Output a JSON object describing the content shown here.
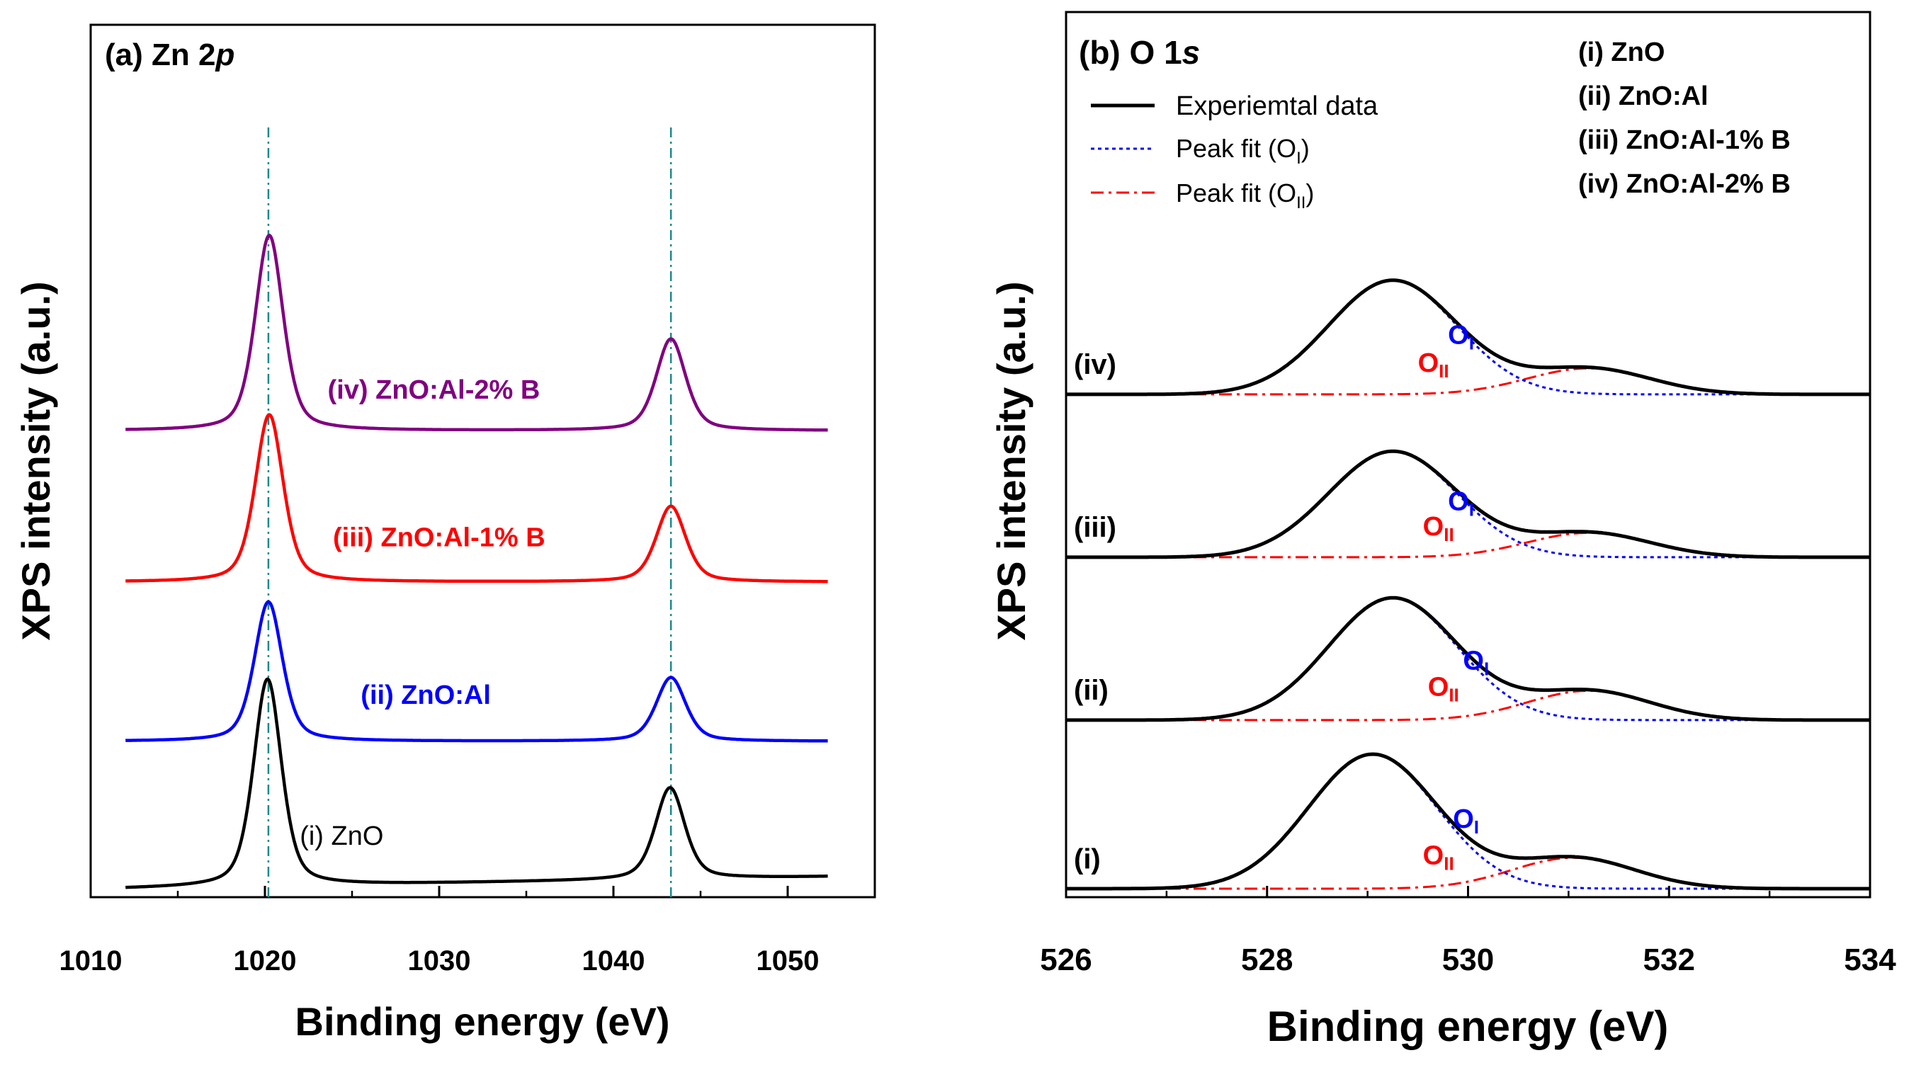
{
  "chart_data": [
    {
      "id": "a",
      "type": "line",
      "title_prefix": "(a) Zn 2",
      "title_italic": "p",
      "xlabel": "Binding energy (eV)",
      "ylabel": "XPS intensity (a.u.)",
      "xlim": [
        1010,
        1055
      ],
      "ylim": [
        0,
        10
      ],
      "x_ticks": [
        1010,
        1020,
        1030,
        1040,
        1050
      ],
      "x_tick_labels": [
        "1010",
        "1020",
        "1030",
        "1040",
        "1050"
      ],
      "y_ticks_shown": false,
      "reference_lines": [
        1020.2,
        1043.3
      ],
      "reference_line_color": "#1a8a8a",
      "x_data_range": [
        1012,
        1052.3
      ],
      "series": [
        {
          "name": "(i) ZnO",
          "label": "(i) ZnO",
          "label_bold": false,
          "color": "#000000",
          "baseline_start": 0.0,
          "baseline_end": 0.15,
          "label_at": [
            1022.0,
            0.55
          ],
          "peaks": [
            {
              "center": 1020.15,
              "height": 2.6,
              "width": 0.95
            },
            {
              "center": 1043.25,
              "height": 1.15,
              "width": 1.0
            }
          ]
        },
        {
          "name": "(ii) ZnO:Al",
          "label": "(ii) ZnO:Al",
          "label_bold": true,
          "color": "#0000ff",
          "baseline_start": 1.85,
          "baseline_end": 1.85,
          "label_at": [
            1025.5,
            2.32
          ],
          "peaks": [
            {
              "center": 1020.2,
              "height": 1.75,
              "width": 0.95
            },
            {
              "center": 1043.3,
              "height": 0.8,
              "width": 1.0
            }
          ]
        },
        {
          "name": "(iii) ZnO:Al-1% B",
          "label": "(iii) ZnO:Al-1% B",
          "label_bold": true,
          "color": "#ff0000",
          "baseline_start": 3.85,
          "baseline_end": 3.85,
          "label_at": [
            1023.9,
            4.3
          ],
          "peaks": [
            {
              "center": 1020.25,
              "height": 2.1,
              "width": 0.95
            },
            {
              "center": 1043.3,
              "height": 0.95,
              "width": 1.0
            }
          ]
        },
        {
          "name": "(iv) ZnO:Al-2% B",
          "label": "(iv) ZnO:Al-2% B",
          "label_bold": true,
          "color": "#800080",
          "baseline_start": 5.75,
          "baseline_end": 5.75,
          "label_at": [
            1023.6,
            6.15
          ],
          "peaks": [
            {
              "center": 1020.25,
              "height": 2.45,
              "width": 0.95
            },
            {
              "center": 1043.3,
              "height": 1.15,
              "width": 1.0
            }
          ]
        }
      ]
    },
    {
      "id": "b",
      "type": "line",
      "title_prefix": "(b) O 1",
      "title_italic": "s",
      "xlabel": "Binding energy (eV)",
      "ylabel": "XPS intensity (a.u.)",
      "xlim": [
        526,
        534
      ],
      "ylim": [
        0,
        10
      ],
      "x_ticks": [
        526,
        528,
        530,
        532,
        534
      ],
      "x_tick_labels": [
        "526",
        "528",
        "530",
        "532",
        "534"
      ],
      "x_minor_ticks": [
        527,
        529,
        531,
        533
      ],
      "y_ticks_shown": false,
      "legend": {
        "placement": "top-left",
        "entries": [
          {
            "label": "Experiemtal data",
            "style": "solid",
            "color": "#000000"
          },
          {
            "label": "Peak fit (O",
            "sub": "I",
            "suffix": ")",
            "style": "dotted",
            "color": "#0000ff"
          },
          {
            "label": "Peak fit (O",
            "sub": "II",
            "suffix": ")",
            "style": "dashdot",
            "color": "#ff0000"
          }
        ]
      },
      "sample_list": [
        "(i) ZnO",
        "(ii) ZnO:Al",
        "(iii) ZnO:Al-1% B",
        "(iv) ZnO:Al-2% B"
      ],
      "component_labels": {
        "OI_main": "O",
        "OI_sub": "I",
        "OII_main": "O",
        "OII_sub": "II"
      },
      "component_colors": {
        "OI": "#0000ff",
        "OII": "#ff0000"
      },
      "series": [
        {
          "name": "(i)",
          "label": "(i)",
          "baseline": 0.0,
          "oi": {
            "center": 529.05,
            "height": 1.65,
            "width": 0.75
          },
          "oii": {
            "center": 531.05,
            "height": 0.38,
            "width": 0.72
          },
          "oi_label_at": [
            529.85,
            0.75
          ],
          "oii_label_at": [
            529.55,
            0.3
          ]
        },
        {
          "name": "(ii)",
          "label": "(ii)",
          "baseline": 2.07,
          "oi": {
            "center": 529.25,
            "height": 1.5,
            "width": 0.75
          },
          "oii": {
            "center": 531.2,
            "height": 0.36,
            "width": 0.72
          },
          "oi_label_at": [
            529.95,
            0.62
          ],
          "oii_label_at": [
            529.6,
            0.3
          ]
        },
        {
          "name": "(iii)",
          "label": "(iii)",
          "baseline": 4.07,
          "oi": {
            "center": 529.25,
            "height": 1.3,
            "width": 0.75
          },
          "oii": {
            "center": 531.2,
            "height": 0.3,
            "width": 0.72
          },
          "oi_label_at": [
            529.8,
            0.58
          ],
          "oii_label_at": [
            529.55,
            0.27
          ]
        },
        {
          "name": "(iv)",
          "label": "(iv)",
          "baseline": 6.07,
          "oi": {
            "center": 529.25,
            "height": 1.4,
            "width": 0.75
          },
          "oii": {
            "center": 531.2,
            "height": 0.32,
            "width": 0.72
          },
          "oi_label_at": [
            529.8,
            0.62
          ],
          "oii_label_at": [
            529.5,
            0.28
          ]
        }
      ]
    }
  ]
}
